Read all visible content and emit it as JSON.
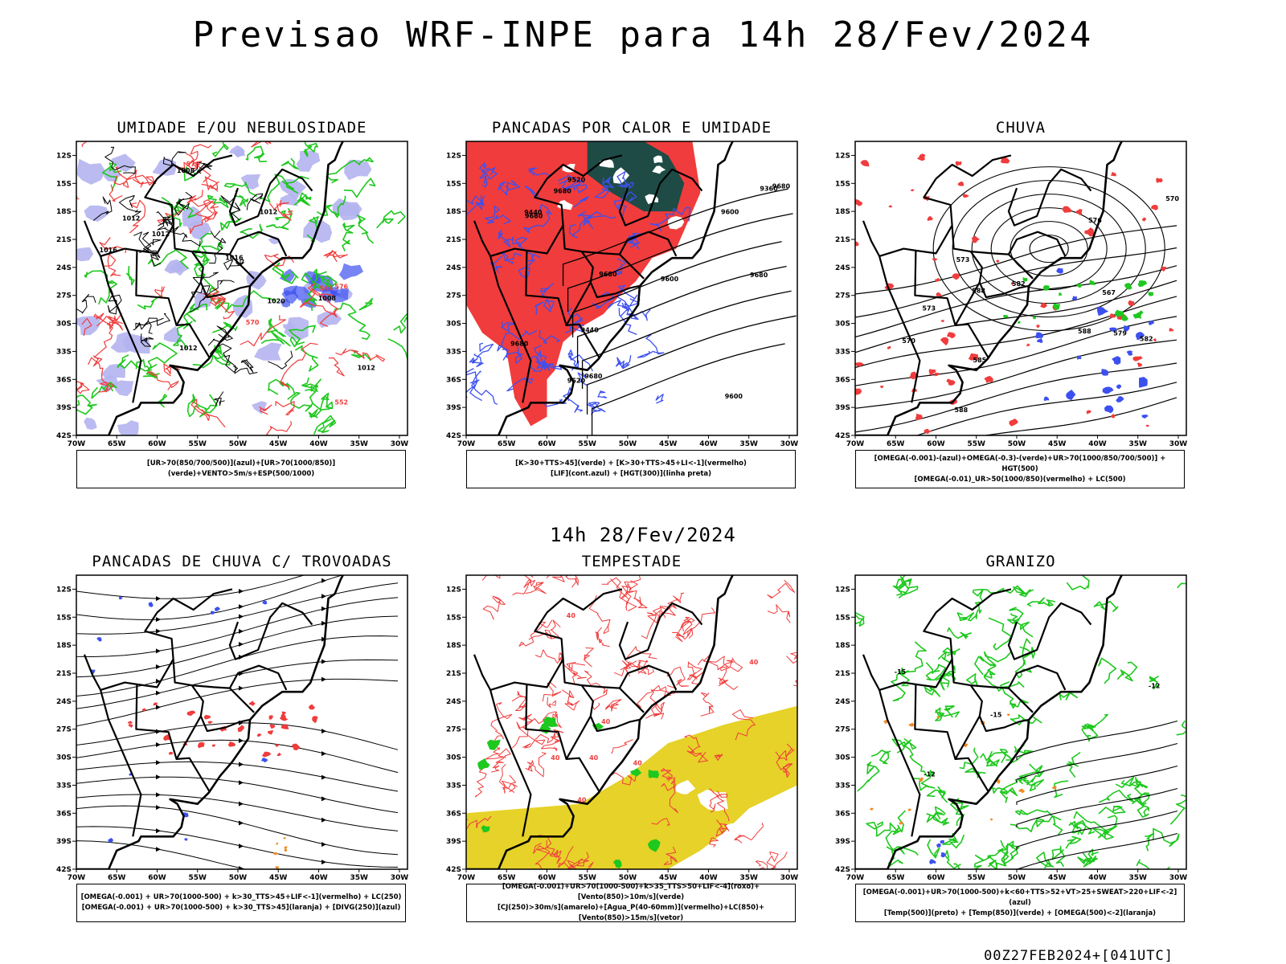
{
  "header": {
    "title": "Previsao WRF-INPE  para 14h 28/Fev/2024",
    "middle_title": "14h 28/Fev/2024",
    "footer": "00Z27FEB2024+[041UTC]"
  },
  "axes": {
    "lat_labels": [
      "12S",
      "15S",
      "18S",
      "21S",
      "24S",
      "27S",
      "30S",
      "33S",
      "36S",
      "39S",
      "42S"
    ],
    "lon_labels": [
      "70W",
      "65W",
      "60W",
      "55W",
      "50W",
      "45W",
      "40W",
      "35W",
      "30W"
    ]
  },
  "colors": {
    "red": "#f03c3c",
    "green": "#1ec81e",
    "blue": "#3c50f0",
    "lavender": "#b4b4f0",
    "dark_teal": "#1e4b46",
    "yellow": "#e6d228",
    "orange": "#f08c28",
    "purple": "#a000c8"
  },
  "panels": [
    {
      "id": "umidade",
      "title": "UMIDADE E/OU NEBULOSIDADE",
      "legend": [
        "[UR>70(850/700/500)](azul)+[UR>70(1000/850)](verde)+VENTO>5m/s+ESP(500/1000)"
      ],
      "contour_labels": [
        "1012",
        "1012",
        "1016",
        "1008",
        "1012",
        "1012",
        "1016",
        "1020",
        "1012",
        "1008",
        "576",
        "564",
        "552",
        "576",
        "570"
      ]
    },
    {
      "id": "pancadas-calor",
      "title": "PANCADAS POR CALOR E UMIDADE",
      "legend": [
        "[K>30+TTS>45](verde) + [K>30+TTS>45+LI<-1](vermelho)",
        "[LIF](cont.azul) + [HGT(300)](linha preta)"
      ],
      "contour_labels": [
        "9680",
        "9680",
        "9680",
        "9600",
        "9680",
        "9680",
        "9600",
        "9520",
        "9440",
        "9360",
        "9600",
        "9520",
        "9440",
        "9680",
        "9680"
      ]
    },
    {
      "id": "chuva",
      "title": "CHUVA",
      "legend": [
        "[OMEGA(-0.001)-(azul)+OMEGA(-0.3)-(verde)+UR>70(1000/850/700/500)] + HGT(500)",
        "[OMEGA(-0.01)_UR>50(1000/850)(vermelho) + LC(500)"
      ],
      "contour_labels": [
        "588",
        "588",
        "588",
        "585",
        "582",
        "576",
        "573",
        "570",
        "567",
        "570",
        "573",
        "579",
        "582"
      ]
    },
    {
      "id": "trovoadas",
      "title": "PANCADAS DE CHUVA C/ TROVOADAS",
      "legend": [
        "[OMEGA(-0.001) + UR>70(1000-500) + k>30_TTS>45+LIF<-1](vermelho) + LC(250)",
        "[OMEGA(-0.001) + UR>70(1000-500) + k>30_TTS>45](laranja) + [DIVG(250)](azul)"
      ],
      "contour_labels": []
    },
    {
      "id": "tempestade",
      "title": "TEMPESTADE",
      "legend": [
        "[OMEGA(-0.001)+UR>70(1000-500)+k>35_TTS>50+LIF<-4](roxo)+[Vento(850)>10m/s](verde)",
        "[CJ(250)>30m/s](amarelo)+[Agua_P(40-60mm)](vermelho)+LC(850)+[Vento(850)>15m/s](vetor)"
      ],
      "contour_labels": [
        "40",
        "40",
        "40",
        "40",
        "40",
        "40",
        "40"
      ]
    },
    {
      "id": "granizo",
      "title": "GRANIZO",
      "legend": [
        "[OMEGA(-0.001)+UR>70(1000-500)+k<60+TTS>52+VT>25+SWEAT>220+LIF<-2](azul)",
        "[Temp(500)](preto) + [Temp(850)](verde) + [OMEGA(500)<-2](laranja)"
      ],
      "contour_labels": [
        "-15",
        "-15",
        "-12",
        "-12"
      ]
    }
  ]
}
